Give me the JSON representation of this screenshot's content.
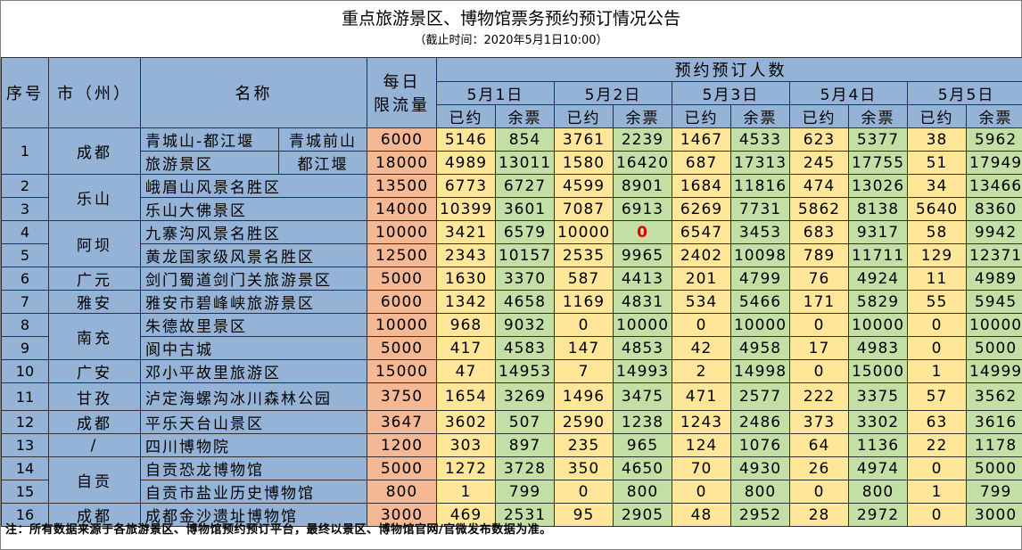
{
  "title": "重点旅游景区、博物馆票务预约预订情况公告",
  "subtitle": "（截止时间：2020年5月1日10:00）",
  "headers": {
    "index": "序号",
    "city": "市（州）",
    "name": "名称",
    "daily_limit_1": "每日",
    "daily_limit_2": "限流量",
    "booking": "预约预订人数",
    "dates": [
      "5月1日",
      "5月2日",
      "5月3日",
      "5月4日",
      "5月5日"
    ],
    "booked": "已约",
    "remaining": "余票"
  },
  "rows": [
    {
      "idx": "1",
      "city": "成都",
      "name": "青城山-都江堰",
      "sub": "青城前山",
      "limit": "6000",
      "d": [
        "5146",
        "854",
        "3761",
        "2239",
        "1467",
        "4533",
        "623",
        "5377",
        "38",
        "5962"
      ]
    },
    {
      "idx": "",
      "city": "",
      "name": "旅游景区",
      "sub": "都江堰",
      "limit": "18000",
      "d": [
        "4989",
        "13011",
        "1580",
        "16420",
        "687",
        "17313",
        "245",
        "17755",
        "51",
        "17949"
      ]
    },
    {
      "idx": "2",
      "city": "乐山",
      "name": "峨眉山风景名胜区",
      "limit": "13500",
      "d": [
        "6773",
        "6727",
        "4599",
        "8901",
        "1684",
        "11816",
        "474",
        "13026",
        "34",
        "13466"
      ]
    },
    {
      "idx": "3",
      "city": "",
      "name": "乐山大佛景区",
      "limit": "14000",
      "d": [
        "10399",
        "3601",
        "7087",
        "6913",
        "6269",
        "7731",
        "5862",
        "8138",
        "5640",
        "8360"
      ]
    },
    {
      "idx": "4",
      "city": "阿坝",
      "name": "九寨沟风景名胜区",
      "limit": "10000",
      "d": [
        "3421",
        "6579",
        "10000",
        "0",
        "6547",
        "3453",
        "683",
        "9317",
        "58",
        "9942"
      ]
    },
    {
      "idx": "5",
      "city": "",
      "name": "黄龙国家级风景名胜区",
      "limit": "12500",
      "d": [
        "2343",
        "10157",
        "2535",
        "9965",
        "2402",
        "10098",
        "789",
        "11711",
        "129",
        "12371"
      ]
    },
    {
      "idx": "6",
      "city": "广元",
      "name": "剑门蜀道剑门关旅游景区",
      "limit": "5000",
      "d": [
        "1630",
        "3370",
        "587",
        "4413",
        "201",
        "4799",
        "76",
        "4924",
        "11",
        "4989"
      ]
    },
    {
      "idx": "7",
      "city": "雅安",
      "name": "雅安市碧峰峡旅游景区",
      "limit": "6000",
      "d": [
        "1342",
        "4658",
        "1169",
        "4831",
        "534",
        "5466",
        "171",
        "5829",
        "55",
        "5945"
      ]
    },
    {
      "idx": "8",
      "city": "南充",
      "name": "朱德故里景区",
      "limit": "10000",
      "d": [
        "968",
        "9032",
        "0",
        "10000",
        "0",
        "10000",
        "0",
        "10000",
        "0",
        "10000"
      ]
    },
    {
      "idx": "9",
      "city": "",
      "name": "阆中古城",
      "limit": "5000",
      "d": [
        "417",
        "4583",
        "147",
        "4853",
        "42",
        "4958",
        "17",
        "4983",
        "0",
        "5000"
      ]
    },
    {
      "idx": "10",
      "city": "广安",
      "name": "邓小平故里旅游区",
      "limit": "15000",
      "d": [
        "47",
        "14953",
        "7",
        "14993",
        "2",
        "14998",
        "0",
        "15000",
        "1",
        "14999"
      ]
    },
    {
      "idx": "11",
      "city": "甘孜",
      "name": "泸定海螺沟冰川森林公园",
      "limit": "3750",
      "d": [
        "1654",
        "3269",
        "1496",
        "3475",
        "471",
        "2577",
        "222",
        "3375",
        "57",
        "3562"
      ]
    },
    {
      "idx": "12",
      "city": "成都",
      "name": "平乐天台山景区",
      "limit": "3647",
      "d": [
        "3602",
        "507",
        "2590",
        "1238",
        "1243",
        "2486",
        "373",
        "3302",
        "63",
        "3616"
      ]
    },
    {
      "idx": "13",
      "city": "/",
      "name": "四川博物院",
      "limit": "1200",
      "d": [
        "303",
        "897",
        "235",
        "965",
        "124",
        "1076",
        "64",
        "1136",
        "22",
        "1178"
      ]
    },
    {
      "idx": "14",
      "city": "自贡",
      "name": "自贡恐龙博物馆",
      "limit": "5000",
      "d": [
        "1272",
        "3728",
        "350",
        "4650",
        "70",
        "4930",
        "26",
        "4974",
        "0",
        "5000"
      ]
    },
    {
      "idx": "15",
      "city": "",
      "name": "自贡市盐业历史博物馆",
      "limit": "800",
      "d": [
        "1",
        "799",
        "0",
        "800",
        "0",
        "800",
        "0",
        "800",
        "1",
        "799"
      ]
    },
    {
      "idx": "16",
      "city": "成都",
      "name": "成都金沙遗址博物馆",
      "limit": "3000",
      "d": [
        "469",
        "2531",
        "95",
        "2905",
        "48",
        "2952",
        "28",
        "2972",
        "0",
        "3000"
      ]
    }
  ],
  "note": "注：所有数据来源于各旅游景区、博物馆预约预订平台，最终以景区、博物馆官网/官微发布数据为准。",
  "colors": {
    "header_blue": "#95b3d7",
    "limit_salmon": "#f5b895",
    "booked_yellow": "#ffe699",
    "remaining_green": "#c4dfa6",
    "highlight_red": "#e00000"
  }
}
